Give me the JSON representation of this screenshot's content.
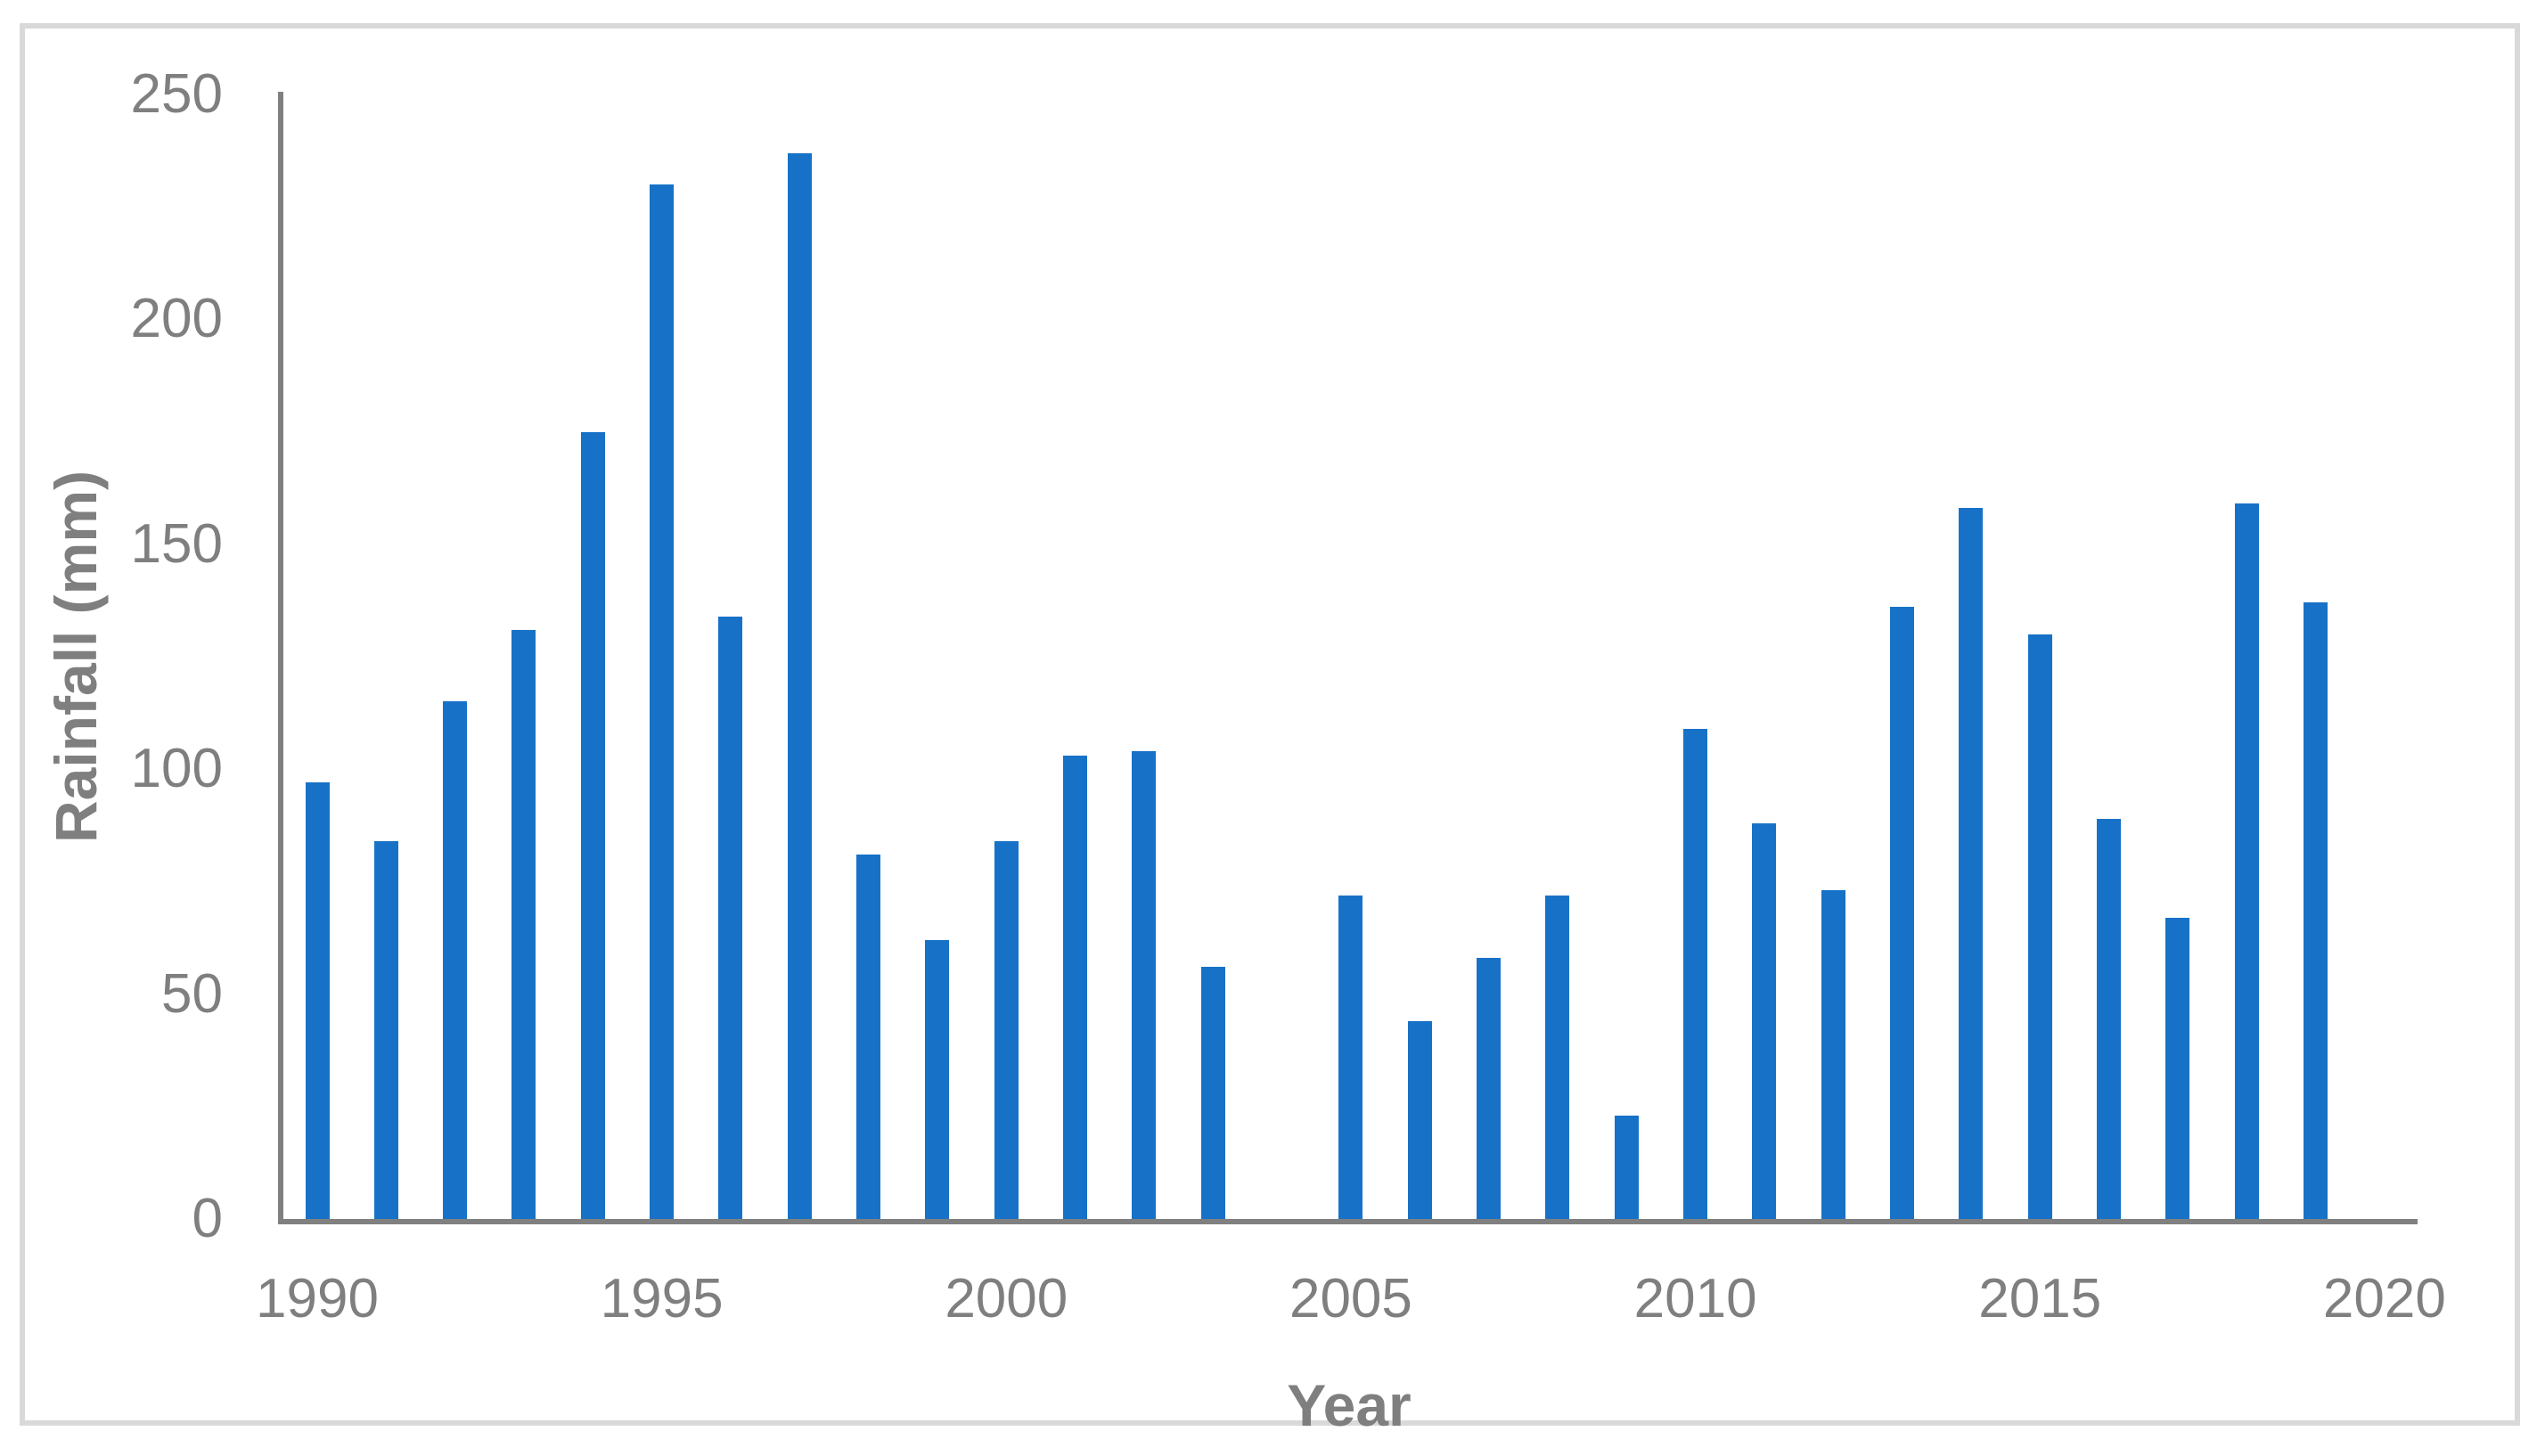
{
  "chart_data": {
    "type": "bar",
    "title": "",
    "xlabel": "Year",
    "ylabel": "Rainfall (mm)",
    "categories": [
      1990,
      1991,
      1992,
      1993,
      1994,
      1995,
      1996,
      1997,
      1998,
      1999,
      2000,
      2001,
      2002,
      2003,
      2004,
      2005,
      2006,
      2007,
      2008,
      2009,
      2010,
      2011,
      2012,
      2013,
      2014,
      2015,
      2016,
      2017,
      2018,
      2019
    ],
    "values": [
      97,
      84,
      115,
      131,
      175,
      230,
      134,
      237,
      81,
      62,
      84,
      103,
      104,
      56,
      0,
      72,
      44,
      58,
      72,
      23,
      109,
      88,
      73,
      136,
      158,
      130,
      89,
      67,
      159,
      137
    ],
    "x_tick_labels": [
      "1990",
      "1995",
      "2000",
      "2005",
      "2010",
      "2015",
      "2020"
    ],
    "x_tick_years": [
      1990,
      1995,
      2000,
      2005,
      2010,
      2015,
      2020
    ],
    "y_ticks": [
      0,
      50,
      100,
      150,
      200,
      250
    ],
    "ylim": [
      0,
      250
    ],
    "x_axis_range_years": [
      1990,
      2020
    ],
    "grid": false,
    "legend": false,
    "bar_color": "#1772c7",
    "axis_color": "#808080",
    "tick_label_color": "#7f7f7f",
    "border_color": "#d9d9d9"
  }
}
